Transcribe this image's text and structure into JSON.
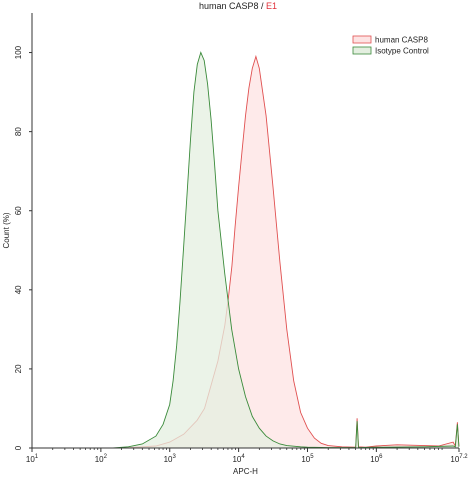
{
  "chart_data": {
    "type": "area",
    "title": "human CASP8",
    "title_separator": " / ",
    "gate_label": "E1",
    "xlabel": "APC-H",
    "ylabel": "Count (%)",
    "x_scale": "log",
    "xlim": [
      10,
      15848931
    ],
    "ylim": [
      0,
      110
    ],
    "x_ticks": [
      {
        "value": 10,
        "base": "10",
        "exp": "1"
      },
      {
        "value": 100,
        "base": "10",
        "exp": "2"
      },
      {
        "value": 1000,
        "base": "10",
        "exp": "3"
      },
      {
        "value": 10000,
        "base": "10",
        "exp": "4"
      },
      {
        "value": 100000,
        "base": "10",
        "exp": "5"
      },
      {
        "value": 1000000,
        "base": "10",
        "exp": "6"
      },
      {
        "value": 15848931,
        "base": "10",
        "exp": "7.2"
      }
    ],
    "y_ticks": [
      0,
      20,
      40,
      60,
      80,
      100
    ],
    "legend_position": "top-right",
    "series": [
      {
        "name": "human CASP8",
        "color": "#e05050",
        "fill": "#fde3e3",
        "x": [
          200,
          630,
          1000,
          1600,
          2500,
          3200,
          4000,
          5000,
          6300,
          7100,
          8000,
          8900,
          10000,
          11200,
          12600,
          14100,
          15800,
          17800,
          20000,
          25100,
          31600,
          39800,
          50100,
          63100,
          79400,
          100000,
          126000,
          158000,
          200000,
          316000,
          501000,
          525000,
          550000,
          700000,
          1000000,
          2000000,
          5000000,
          8000000,
          13000000,
          14000000,
          15000000,
          15800000
        ],
        "y": [
          0,
          0.5,
          1.5,
          3.5,
          7,
          10,
          16,
          22,
          31,
          38,
          46,
          56,
          66,
          75,
          84,
          91,
          96,
          99,
          96,
          84,
          66,
          47,
          30,
          17,
          9,
          5,
          2.5,
          1.2,
          0.6,
          0.3,
          0.2,
          7.5,
          0.3,
          0.2,
          0.5,
          0.8,
          0.6,
          0.5,
          1.5,
          0.5,
          6.5,
          0.5
        ]
      },
      {
        "name": "Isotype Control",
        "color": "#3a8a3a",
        "fill": "#e4efe0",
        "x": [
          150,
          250,
          400,
          630,
          800,
          1000,
          1120,
          1260,
          1410,
          1580,
          1780,
          2000,
          2240,
          2510,
          2820,
          3160,
          3550,
          3980,
          4470,
          5010,
          6310,
          7940,
          10000,
          12600,
          15800,
          20000,
          25100,
          31600,
          39800,
          50100,
          79400,
          100000,
          200000,
          501000,
          525000,
          550000,
          1000000,
          5000000,
          13000000,
          14000000,
          15000000,
          15800000
        ],
        "y": [
          0,
          0.3,
          1,
          3,
          6,
          11,
          17,
          26,
          37,
          50,
          64,
          78,
          90,
          97,
          100,
          98,
          92,
          83,
          72,
          60,
          44,
          30,
          20,
          13,
          8,
          5,
          3,
          1.8,
          1,
          0.6,
          0.3,
          0.2,
          0.1,
          0.1,
          6.8,
          0.1,
          0.2,
          0.3,
          0.5,
          0.3,
          6,
          0.3
        ]
      }
    ]
  }
}
